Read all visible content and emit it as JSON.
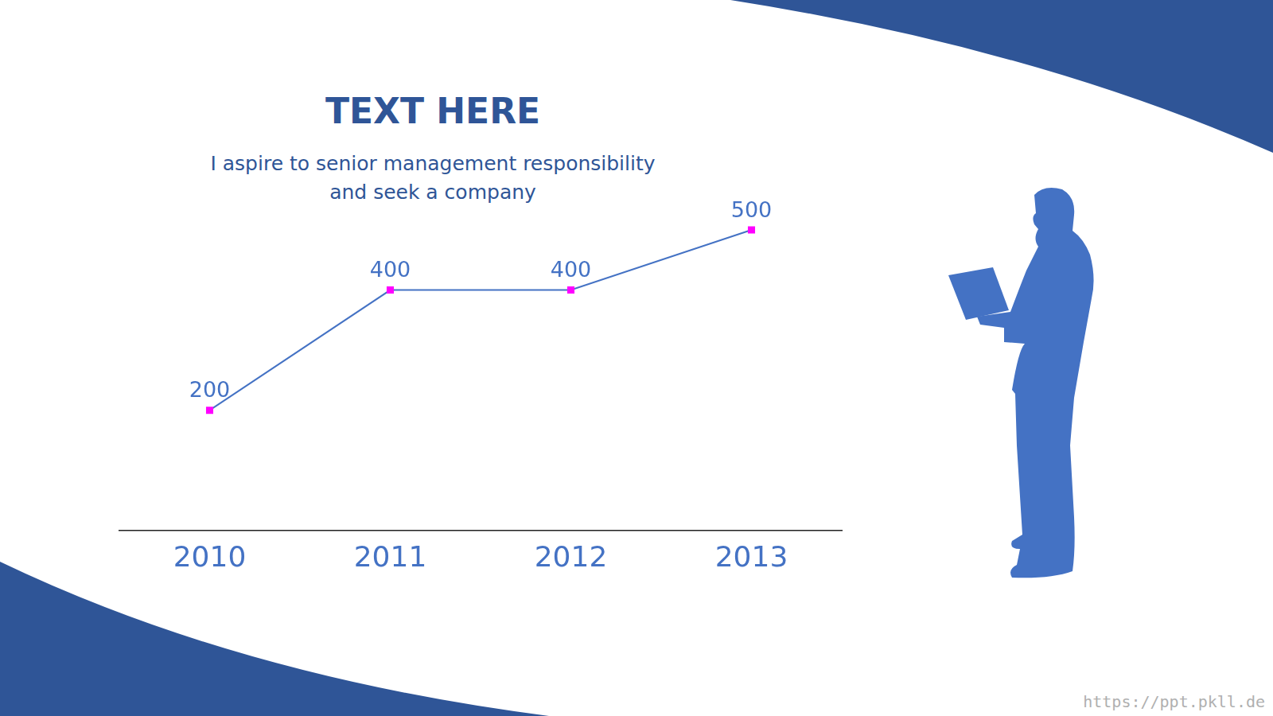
{
  "chart_data": {
    "type": "line",
    "title": "TEXT HERE",
    "subtitle": [
      "I aspire to senior management responsibility",
      "and seek a company"
    ],
    "categories": [
      "2010",
      "2011",
      "2012",
      "2013"
    ],
    "values": [
      200,
      400,
      400,
      500
    ],
    "color": "#4472c4",
    "marker": "square",
    "ylim": [
      0,
      500
    ],
    "grid": false,
    "data_labels": true,
    "tick_labels": "x"
  },
  "watermark": "https://ppt.pkll.de"
}
